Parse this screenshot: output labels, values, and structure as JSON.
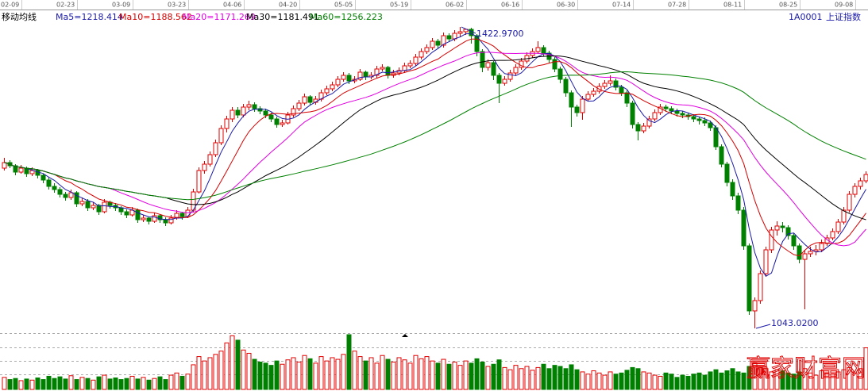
{
  "chart_data": {
    "type": "candlestick",
    "indicator_title": "移动均线",
    "code": "1A0001",
    "name": "上证指数",
    "watermark": "赢家财富网",
    "moving_averages": [
      {
        "name": "Ma5=1218.414",
        "window": 5,
        "color": "#1a1aa8"
      },
      {
        "name": "Ma10=1188.562",
        "window": 10,
        "color": "#d40000"
      },
      {
        "name": "Ma20=1171.269",
        "window": 20,
        "color": "#e000e0"
      },
      {
        "name": "Ma30=1181.491",
        "window": 30,
        "color": "#000000"
      },
      {
        "name": "Ma60=1256.223",
        "window": 60,
        "color": "#008000"
      }
    ],
    "high_label": "1422.9700",
    "low_label": "1043.0200",
    "up_color": "#e00000",
    "down_color": "#008000",
    "ylim": [
      1032,
      1445
    ],
    "vlim": [
      0,
      100
    ],
    "categories": [
      "02-09",
      null,
      null,
      null,
      null,
      null,
      null,
      null,
      null,
      null,
      "02-23",
      null,
      null,
      null,
      null,
      null,
      null,
      null,
      null,
      null,
      "03-09",
      null,
      null,
      null,
      null,
      null,
      null,
      null,
      null,
      null,
      "03-23",
      null,
      null,
      null,
      null,
      null,
      null,
      null,
      null,
      null,
      "04-06",
      null,
      null,
      null,
      null,
      null,
      null,
      null,
      null,
      null,
      "04-20",
      null,
      null,
      null,
      null,
      null,
      null,
      null,
      null,
      null,
      "05-05",
      null,
      null,
      null,
      null,
      null,
      null,
      null,
      null,
      null,
      "05-19",
      null,
      null,
      null,
      null,
      null,
      null,
      null,
      null,
      null,
      "06-02",
      null,
      null,
      null,
      null,
      null,
      null,
      null,
      null,
      null,
      "06-16",
      null,
      null,
      null,
      null,
      null,
      null,
      null,
      null,
      null,
      "06-30",
      null,
      null,
      null,
      null,
      null,
      null,
      null,
      null,
      null,
      "07-14",
      null,
      null,
      null,
      null,
      null,
      null,
      null,
      null,
      null,
      "07-28",
      null,
      null,
      null,
      null,
      null,
      null,
      null,
      null,
      null,
      "08-11",
      null,
      null,
      null,
      null,
      null,
      null,
      null,
      null,
      null,
      "08-25",
      null,
      null,
      null,
      null,
      null,
      null,
      null,
      null,
      null,
      "09-08",
      null,
      null,
      null,
      null,
      null
    ],
    "ohlc": [
      [
        1245,
        1258,
        1242,
        1252
      ],
      [
        1252,
        1255,
        1245,
        1248
      ],
      [
        1248,
        1250,
        1236,
        1240
      ],
      [
        1240,
        1249,
        1238,
        1245
      ],
      [
        1245,
        1247,
        1234,
        1238
      ],
      [
        1238,
        1246,
        1235,
        1242
      ],
      [
        1242,
        1244,
        1232,
        1236
      ],
      [
        1236,
        1238,
        1226,
        1230
      ],
      [
        1230,
        1233,
        1218,
        1222
      ],
      [
        1222,
        1226,
        1214,
        1218
      ],
      [
        1218,
        1221,
        1208,
        1212
      ],
      [
        1212,
        1215,
        1204,
        1208
      ],
      [
        1208,
        1218,
        1205,
        1214
      ],
      [
        1214,
        1216,
        1196,
        1200
      ],
      [
        1200,
        1208,
        1197,
        1203
      ],
      [
        1203,
        1206,
        1191,
        1195
      ],
      [
        1195,
        1202,
        1192,
        1198
      ],
      [
        1198,
        1200,
        1186,
        1190
      ],
      [
        1190,
        1206,
        1188,
        1202
      ],
      [
        1202,
        1204,
        1194,
        1198
      ],
      [
        1198,
        1201,
        1191,
        1195
      ],
      [
        1195,
        1197,
        1186,
        1190
      ],
      [
        1190,
        1193,
        1182,
        1186
      ],
      [
        1186,
        1196,
        1184,
        1192
      ],
      [
        1192,
        1194,
        1176,
        1180
      ],
      [
        1180,
        1186,
        1177,
        1182
      ],
      [
        1182,
        1184,
        1174,
        1178
      ],
      [
        1178,
        1189,
        1176,
        1185
      ],
      [
        1185,
        1187,
        1176,
        1180
      ],
      [
        1180,
        1183,
        1172,
        1176
      ],
      [
        1176,
        1186,
        1174,
        1182
      ],
      [
        1182,
        1192,
        1180,
        1188
      ],
      [
        1188,
        1190,
        1180,
        1184
      ],
      [
        1184,
        1196,
        1182,
        1192
      ],
      [
        1192,
        1219,
        1190,
        1215
      ],
      [
        1215,
        1246,
        1213,
        1242
      ],
      [
        1242,
        1254,
        1238,
        1250
      ],
      [
        1250,
        1266,
        1247,
        1262
      ],
      [
        1262,
        1281,
        1259,
        1277
      ],
      [
        1277,
        1299,
        1274,
        1295
      ],
      [
        1295,
        1311,
        1290,
        1307
      ],
      [
        1307,
        1322,
        1303,
        1318
      ],
      [
        1318,
        1322,
        1308,
        1312
      ],
      [
        1312,
        1326,
        1309,
        1322
      ],
      [
        1322,
        1330,
        1318,
        1325
      ],
      [
        1325,
        1328,
        1316,
        1320
      ],
      [
        1320,
        1323,
        1313,
        1317
      ],
      [
        1317,
        1320,
        1308,
        1312
      ],
      [
        1312,
        1315,
        1303,
        1307
      ],
      [
        1307,
        1310,
        1296,
        1300
      ],
      [
        1300,
        1306,
        1297,
        1302
      ],
      [
        1302,
        1316,
        1300,
        1312
      ],
      [
        1312,
        1324,
        1309,
        1320
      ],
      [
        1320,
        1331,
        1317,
        1327
      ],
      [
        1327,
        1339,
        1324,
        1335
      ],
      [
        1335,
        1337,
        1324,
        1328
      ],
      [
        1328,
        1336,
        1325,
        1332
      ],
      [
        1332,
        1344,
        1329,
        1340
      ],
      [
        1340,
        1349,
        1337,
        1345
      ],
      [
        1345,
        1354,
        1342,
        1350
      ],
      [
        1350,
        1361,
        1347,
        1357
      ],
      [
        1357,
        1366,
        1354,
        1362
      ],
      [
        1362,
        1365,
        1351,
        1355
      ],
      [
        1355,
        1361,
        1352,
        1357
      ],
      [
        1357,
        1370,
        1355,
        1366
      ],
      [
        1366,
        1368,
        1356,
        1360
      ],
      [
        1360,
        1366,
        1357,
        1362
      ],
      [
        1362,
        1374,
        1359,
        1370
      ],
      [
        1370,
        1376,
        1367,
        1372
      ],
      [
        1372,
        1374,
        1358,
        1362
      ],
      [
        1362,
        1369,
        1359,
        1365
      ],
      [
        1365,
        1372,
        1362,
        1368
      ],
      [
        1368,
        1378,
        1365,
        1374
      ],
      [
        1374,
        1381,
        1371,
        1377
      ],
      [
        1377,
        1389,
        1374,
        1385
      ],
      [
        1385,
        1396,
        1382,
        1392
      ],
      [
        1392,
        1401,
        1389,
        1397
      ],
      [
        1397,
        1409,
        1394,
        1405
      ],
      [
        1405,
        1408,
        1396,
        1400
      ],
      [
        1400,
        1416,
        1397,
        1412
      ],
      [
        1412,
        1415,
        1404,
        1408
      ],
      [
        1408,
        1419,
        1405,
        1415
      ],
      [
        1415,
        1422.97,
        1410,
        1417
      ],
      [
        1417,
        1421,
        1413,
        1420
      ],
      [
        1420,
        1422,
        1402,
        1412
      ],
      [
        1412,
        1414,
        1386,
        1392
      ],
      [
        1392,
        1395,
        1366,
        1372
      ],
      [
        1372,
        1382,
        1368,
        1378
      ],
      [
        1378,
        1380,
        1356,
        1362
      ],
      [
        1362,
        1365,
        1327,
        1352
      ],
      [
        1352,
        1361,
        1349,
        1357
      ],
      [
        1357,
        1369,
        1354,
        1365
      ],
      [
        1365,
        1376,
        1362,
        1372
      ],
      [
        1372,
        1384,
        1369,
        1380
      ],
      [
        1380,
        1391,
        1377,
        1387
      ],
      [
        1387,
        1396,
        1384,
        1392
      ],
      [
        1392,
        1405,
        1389,
        1397
      ],
      [
        1397,
        1400,
        1386,
        1390
      ],
      [
        1390,
        1393,
        1378,
        1382
      ],
      [
        1382,
        1385,
        1366,
        1370
      ],
      [
        1370,
        1373,
        1352,
        1357
      ],
      [
        1357,
        1360,
        1335,
        1340
      ],
      [
        1340,
        1343,
        1297,
        1322
      ],
      [
        1322,
        1325,
        1310,
        1315
      ],
      [
        1315,
        1336,
        1306,
        1332
      ],
      [
        1332,
        1342,
        1329,
        1338
      ],
      [
        1338,
        1346,
        1335,
        1342
      ],
      [
        1342,
        1352,
        1339,
        1348
      ],
      [
        1348,
        1356,
        1345,
        1352
      ],
      [
        1352,
        1362,
        1349,
        1355
      ],
      [
        1355,
        1358,
        1343,
        1347
      ],
      [
        1347,
        1350,
        1336,
        1340
      ],
      [
        1340,
        1343,
        1322,
        1327
      ],
      [
        1327,
        1330,
        1295,
        1300
      ],
      [
        1300,
        1303,
        1280,
        1292
      ],
      [
        1292,
        1302,
        1289,
        1298
      ],
      [
        1298,
        1311,
        1295,
        1307
      ],
      [
        1307,
        1319,
        1304,
        1315
      ],
      [
        1315,
        1326,
        1312,
        1322
      ],
      [
        1322,
        1325,
        1316,
        1320
      ],
      [
        1320,
        1323,
        1313,
        1317
      ],
      [
        1317,
        1320,
        1310,
        1314
      ],
      [
        1314,
        1317,
        1308,
        1312
      ],
      [
        1312,
        1315,
        1306,
        1310
      ],
      [
        1310,
        1313,
        1303,
        1307
      ],
      [
        1307,
        1310,
        1300,
        1305
      ],
      [
        1305,
        1309,
        1298,
        1302
      ],
      [
        1302,
        1305,
        1292,
        1296
      ],
      [
        1296,
        1299,
        1268,
        1272
      ],
      [
        1272,
        1275,
        1246,
        1250
      ],
      [
        1250,
        1253,
        1222,
        1227
      ],
      [
        1227,
        1231,
        1205,
        1210
      ],
      [
        1210,
        1214,
        1187,
        1192
      ],
      [
        1192,
        1196,
        1142,
        1147
      ],
      [
        1147,
        1150,
        1060,
        1065
      ],
      [
        1065,
        1082,
        1043.02,
        1078
      ],
      [
        1078,
        1116,
        1074,
        1112
      ],
      [
        1112,
        1146,
        1108,
        1142
      ],
      [
        1142,
        1171,
        1138,
        1167
      ],
      [
        1167,
        1178,
        1160,
        1172
      ],
      [
        1172,
        1177,
        1164,
        1170
      ],
      [
        1170,
        1173,
        1155,
        1160
      ],
      [
        1160,
        1163,
        1142,
        1147
      ],
      [
        1147,
        1150,
        1125,
        1130
      ],
      [
        1130,
        1141,
        1067,
        1137
      ],
      [
        1137,
        1146,
        1133,
        1140
      ],
      [
        1140,
        1148,
        1135,
        1142
      ],
      [
        1142,
        1155,
        1139,
        1150
      ],
      [
        1150,
        1161,
        1147,
        1157
      ],
      [
        1157,
        1169,
        1154,
        1165
      ],
      [
        1165,
        1181,
        1162,
        1177
      ],
      [
        1177,
        1196,
        1174,
        1192
      ],
      [
        1192,
        1216,
        1189,
        1212
      ],
      [
        1212,
        1226,
        1208,
        1222
      ],
      [
        1222,
        1233,
        1218,
        1229
      ],
      [
        1229,
        1241,
        1226,
        1237
      ]
    ],
    "volume": [
      22,
      18,
      20,
      16,
      19,
      17,
      21,
      18,
      24,
      20,
      23,
      19,
      25,
      18,
      22,
      20,
      17,
      23,
      26,
      19,
      21,
      18,
      20,
      24,
      19,
      22,
      17,
      20,
      23,
      18,
      26,
      30,
      24,
      28,
      45,
      60,
      52,
      58,
      64,
      70,
      85,
      98,
      90,
      72,
      66,
      55,
      50,
      48,
      44,
      52,
      46,
      54,
      58,
      50,
      62,
      56,
      48,
      60,
      52,
      58,
      55,
      64,
      100,
      70,
      60,
      52,
      58,
      48,
      62,
      55,
      50,
      58,
      54,
      48,
      62,
      56,
      60,
      52,
      48,
      55,
      46,
      50,
      44,
      52,
      48,
      56,
      50,
      42,
      46,
      54,
      40,
      36,
      44,
      38,
      42,
      35,
      40,
      46,
      38,
      44,
      42,
      38,
      45,
      36,
      32,
      28,
      34,
      30,
      26,
      32,
      28,
      30,
      35,
      40,
      38,
      32,
      30,
      26,
      24,
      30,
      28,
      22,
      26,
      24,
      28,
      30,
      26,
      32,
      36,
      30,
      34,
      38,
      32,
      30,
      42,
      48,
      40,
      38,
      32,
      36,
      34,
      30,
      28,
      32,
      38,
      30,
      26,
      34,
      30,
      28,
      32,
      36,
      40,
      30,
      38,
      76
    ]
  }
}
